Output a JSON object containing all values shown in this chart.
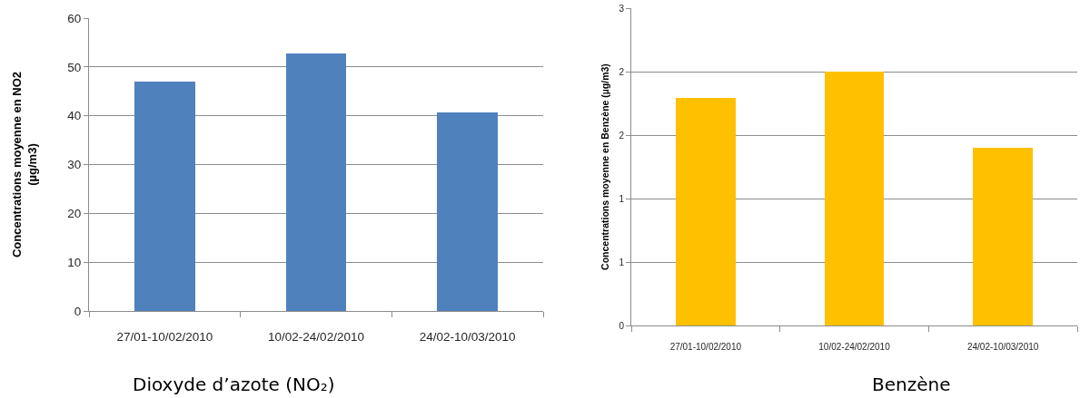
{
  "chart_data": [
    {
      "type": "bar",
      "title": "Dioxyde d’azote (NO₂)",
      "ylabel": "Concentrations moyenne en NO2\n(µg/m3)",
      "categories": [
        "27/01-10/02/2010",
        "10/02-24/02/2010",
        "24/02-10/03/2010"
      ],
      "values": [
        47,
        52.8,
        40.7
      ],
      "color": "#4f81bd",
      "ylim": [
        0,
        60
      ],
      "yticks": [
        0,
        10,
        20,
        30,
        40,
        50,
        60
      ],
      "grid": "y"
    },
    {
      "type": "bar",
      "title": "Benzène",
      "ylabel": "Concentrations moyenne en Benzène (µg/m3)",
      "categories": [
        "27/01-10/02/2010",
        "10/02-24/02/2010",
        "24/02-10/03/2010"
      ],
      "values": [
        2.15,
        2.4,
        1.68
      ],
      "color": "#ffc000",
      "ylim": [
        0,
        3
      ],
      "yticks": [
        0,
        {
          "value": 0.6,
          "label": "1"
        },
        {
          "value": 1.2,
          "label": "1"
        },
        {
          "value": 1.8,
          "label": "2"
        },
        {
          "value": 2.4,
          "label": "2"
        },
        3
      ],
      "grid": "y"
    }
  ]
}
